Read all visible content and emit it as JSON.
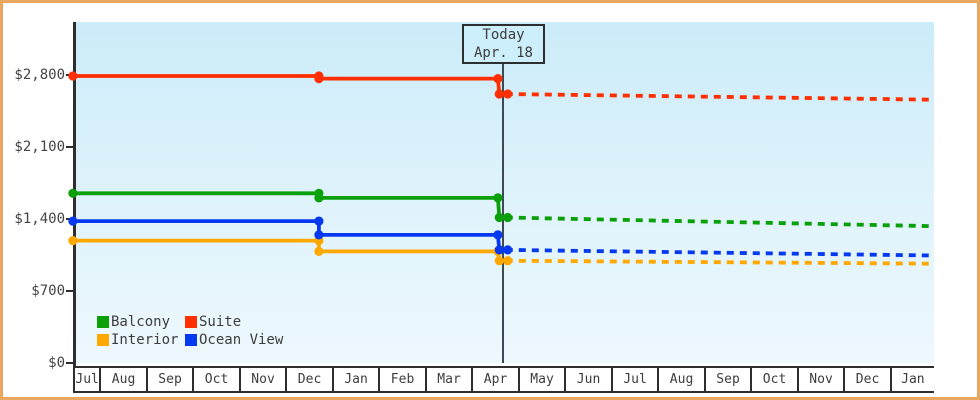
{
  "frame": {
    "border_color": "#e9a75f",
    "background": "#ffffff"
  },
  "plot": {
    "bg_gradient_top": "#cbecf9",
    "bg_gradient_bottom": "#edf8fd",
    "axis_color": "#2e2e2e",
    "today_line_color": "#3d4a55"
  },
  "today_marker": {
    "line1": "Today",
    "line2": "Apr. 18"
  },
  "legend": {
    "items": [
      {
        "label": "Balcony",
        "color": "#0aa00a"
      },
      {
        "label": "Suite",
        "color": "#ff2f02"
      },
      {
        "label": "Interior",
        "color": "#ffa800"
      },
      {
        "label": "Ocean View",
        "color": "#0439f0"
      }
    ]
  },
  "chart_data": {
    "type": "line",
    "description": "Cabin price history and forecast; solid lines are past prices, dashed lines are forecast after today (Apr. 18). x unit = months since July 1 of first year.",
    "y_axis": {
      "tick_labels": [
        "$0",
        "$700",
        "$1,400",
        "$2,100",
        "$2,800"
      ],
      "tick_values": [
        0,
        700,
        1400,
        2100,
        2800
      ],
      "range": [
        0,
        2950
      ],
      "grid": false
    },
    "x_axis": {
      "month_labels": [
        "Jul",
        "Aug",
        "Sep",
        "Oct",
        "Nov",
        "Dec",
        "Jan",
        "Feb",
        "Mar",
        "Apr",
        "May",
        "Jun",
        "Jul",
        "Aug",
        "Sep",
        "Oct",
        "Nov",
        "Dec",
        "Jan"
      ],
      "visible_range_months": [
        0.39,
        18.9
      ]
    },
    "today": {
      "label": [
        "Today",
        "Apr. 18"
      ],
      "month_position": 9.64
    },
    "legend_position": "bottom-left inside plot",
    "series": [
      {
        "name": "Suite",
        "color": "#ff2f02",
        "points_solid": [
          [
            0.39,
            2790
          ],
          [
            5.68,
            2790
          ],
          [
            5.68,
            2765
          ],
          [
            9.53,
            2765
          ],
          [
            9.56,
            2615
          ]
        ],
        "points_dashed": [
          [
            9.7,
            2615
          ],
          [
            18.9,
            2560
          ]
        ],
        "markers": [
          [
            0.39,
            2790
          ],
          [
            5.68,
            2790
          ],
          [
            5.68,
            2765
          ],
          [
            9.53,
            2765
          ],
          [
            9.56,
            2615
          ],
          [
            9.74,
            2615
          ]
        ]
      },
      {
        "name": "Balcony",
        "color": "#0aa00a",
        "points_solid": [
          [
            0.39,
            1650
          ],
          [
            5.68,
            1650
          ],
          [
            5.68,
            1605
          ],
          [
            9.53,
            1605
          ],
          [
            9.56,
            1415
          ]
        ],
        "points_dashed": [
          [
            9.7,
            1415
          ],
          [
            18.9,
            1330
          ]
        ],
        "markers": [
          [
            0.39,
            1650
          ],
          [
            5.68,
            1650
          ],
          [
            5.68,
            1605
          ],
          [
            9.53,
            1605
          ],
          [
            9.56,
            1415
          ],
          [
            9.74,
            1415
          ]
        ]
      },
      {
        "name": "Interior",
        "color": "#ffa800",
        "points_solid": [
          [
            0.39,
            1190
          ],
          [
            5.68,
            1190
          ],
          [
            5.68,
            1085
          ],
          [
            9.53,
            1085
          ],
          [
            9.56,
            995
          ]
        ],
        "points_dashed": [
          [
            9.7,
            995
          ],
          [
            18.9,
            965
          ]
        ],
        "markers": [
          [
            0.39,
            1190
          ],
          [
            5.68,
            1190
          ],
          [
            5.68,
            1085
          ],
          [
            9.53,
            1085
          ],
          [
            9.56,
            995
          ],
          [
            9.74,
            995
          ]
        ]
      },
      {
        "name": "Ocean View",
        "color": "#0439f0",
        "points_solid": [
          [
            0.39,
            1380
          ],
          [
            5.68,
            1380
          ],
          [
            5.68,
            1245
          ],
          [
            9.53,
            1245
          ],
          [
            9.56,
            1100
          ]
        ],
        "points_dashed": [
          [
            9.7,
            1100
          ],
          [
            18.9,
            1045
          ]
        ],
        "markers": [
          [
            0.39,
            1380
          ],
          [
            5.68,
            1380
          ],
          [
            5.68,
            1245
          ],
          [
            9.53,
            1245
          ],
          [
            9.56,
            1100
          ],
          [
            9.74,
            1100
          ]
        ]
      }
    ]
  }
}
